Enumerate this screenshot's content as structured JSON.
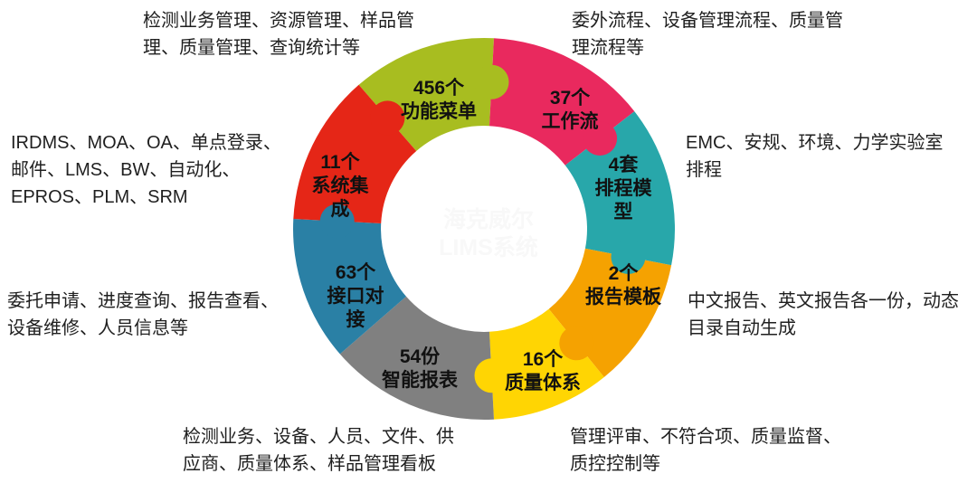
{
  "diagram": {
    "type": "puzzle-donut",
    "background": "#ffffff",
    "watermark": {
      "line1": "海克威尔",
      "line2": "LIMS系统",
      "color": "#f8f8f8"
    },
    "segments": [
      {
        "id": "function-menus",
        "lines": [
          "456个",
          "功能菜单"
        ],
        "color": "#a8bd20",
        "start": 319,
        "span": 44,
        "knob": true
      },
      {
        "id": "workflows",
        "lines": [
          "37个",
          "工作流"
        ],
        "color": "#e9295e",
        "start": 3,
        "span": 49,
        "knob": true
      },
      {
        "id": "scheduling-models",
        "lines": [
          "4套",
          "排程模",
          "型"
        ],
        "color": "#28a7aa",
        "start": 52,
        "span": 49,
        "knob": true
      },
      {
        "id": "report-templates",
        "lines": [
          "2个",
          "报告模板"
        ],
        "color": "#f5a201",
        "start": 101,
        "span": 40,
        "knob": true
      },
      {
        "id": "quality-systems",
        "lines": [
          "16个",
          "质量体系"
        ],
        "color": "#ffd503",
        "start": 141,
        "span": 36,
        "knob": true
      },
      {
        "id": "smart-reports",
        "lines": [
          "54份",
          "智能报表"
        ],
        "color": "#808080",
        "start": 177,
        "span": 52,
        "knob": false
      },
      {
        "id": "interfaces",
        "lines": [
          "63个",
          "接口对",
          "接"
        ],
        "color": "#2a80a5",
        "start": 229,
        "span": 44,
        "knob": true
      },
      {
        "id": "system-integrations",
        "lines": [
          "11个",
          "系统集",
          "成"
        ],
        "color": "#e52617",
        "start": 273,
        "span": 46,
        "knob": true
      }
    ],
    "annotations": {
      "top_left": {
        "lines": [
          "检测业务管理、资源管理、样品管",
          "理、质量管理、查询统计等"
        ]
      },
      "top_right": {
        "lines": [
          "委外流程、设备管理流程、质量管",
          "理流程等"
        ]
      },
      "left": {
        "lines": [
          "IRDMS、MOA、OA、单点登录、",
          "邮件、LMS、BW、自动化、",
          "EPROS、PLM、SRM"
        ]
      },
      "right": {
        "lines": [
          "EMC、安规、环境、力学实验室",
          "排程"
        ]
      },
      "left_lower": {
        "lines": [
          "委托申请、进度查询、报告查看、",
          "设备维修、人员信息等"
        ]
      },
      "right_lower": {
        "lines": [
          "中文报告、英文报告各一份，动态",
          "目录自动生成"
        ]
      },
      "bottom_left": {
        "lines": [
          "检测业务、设备、人员、文件、供",
          "应商、质量体系、样品管理看板"
        ]
      },
      "bottom_right": {
        "lines": [
          "管理评审、不符合项、质量监督、",
          "质控控制等"
        ]
      }
    }
  }
}
